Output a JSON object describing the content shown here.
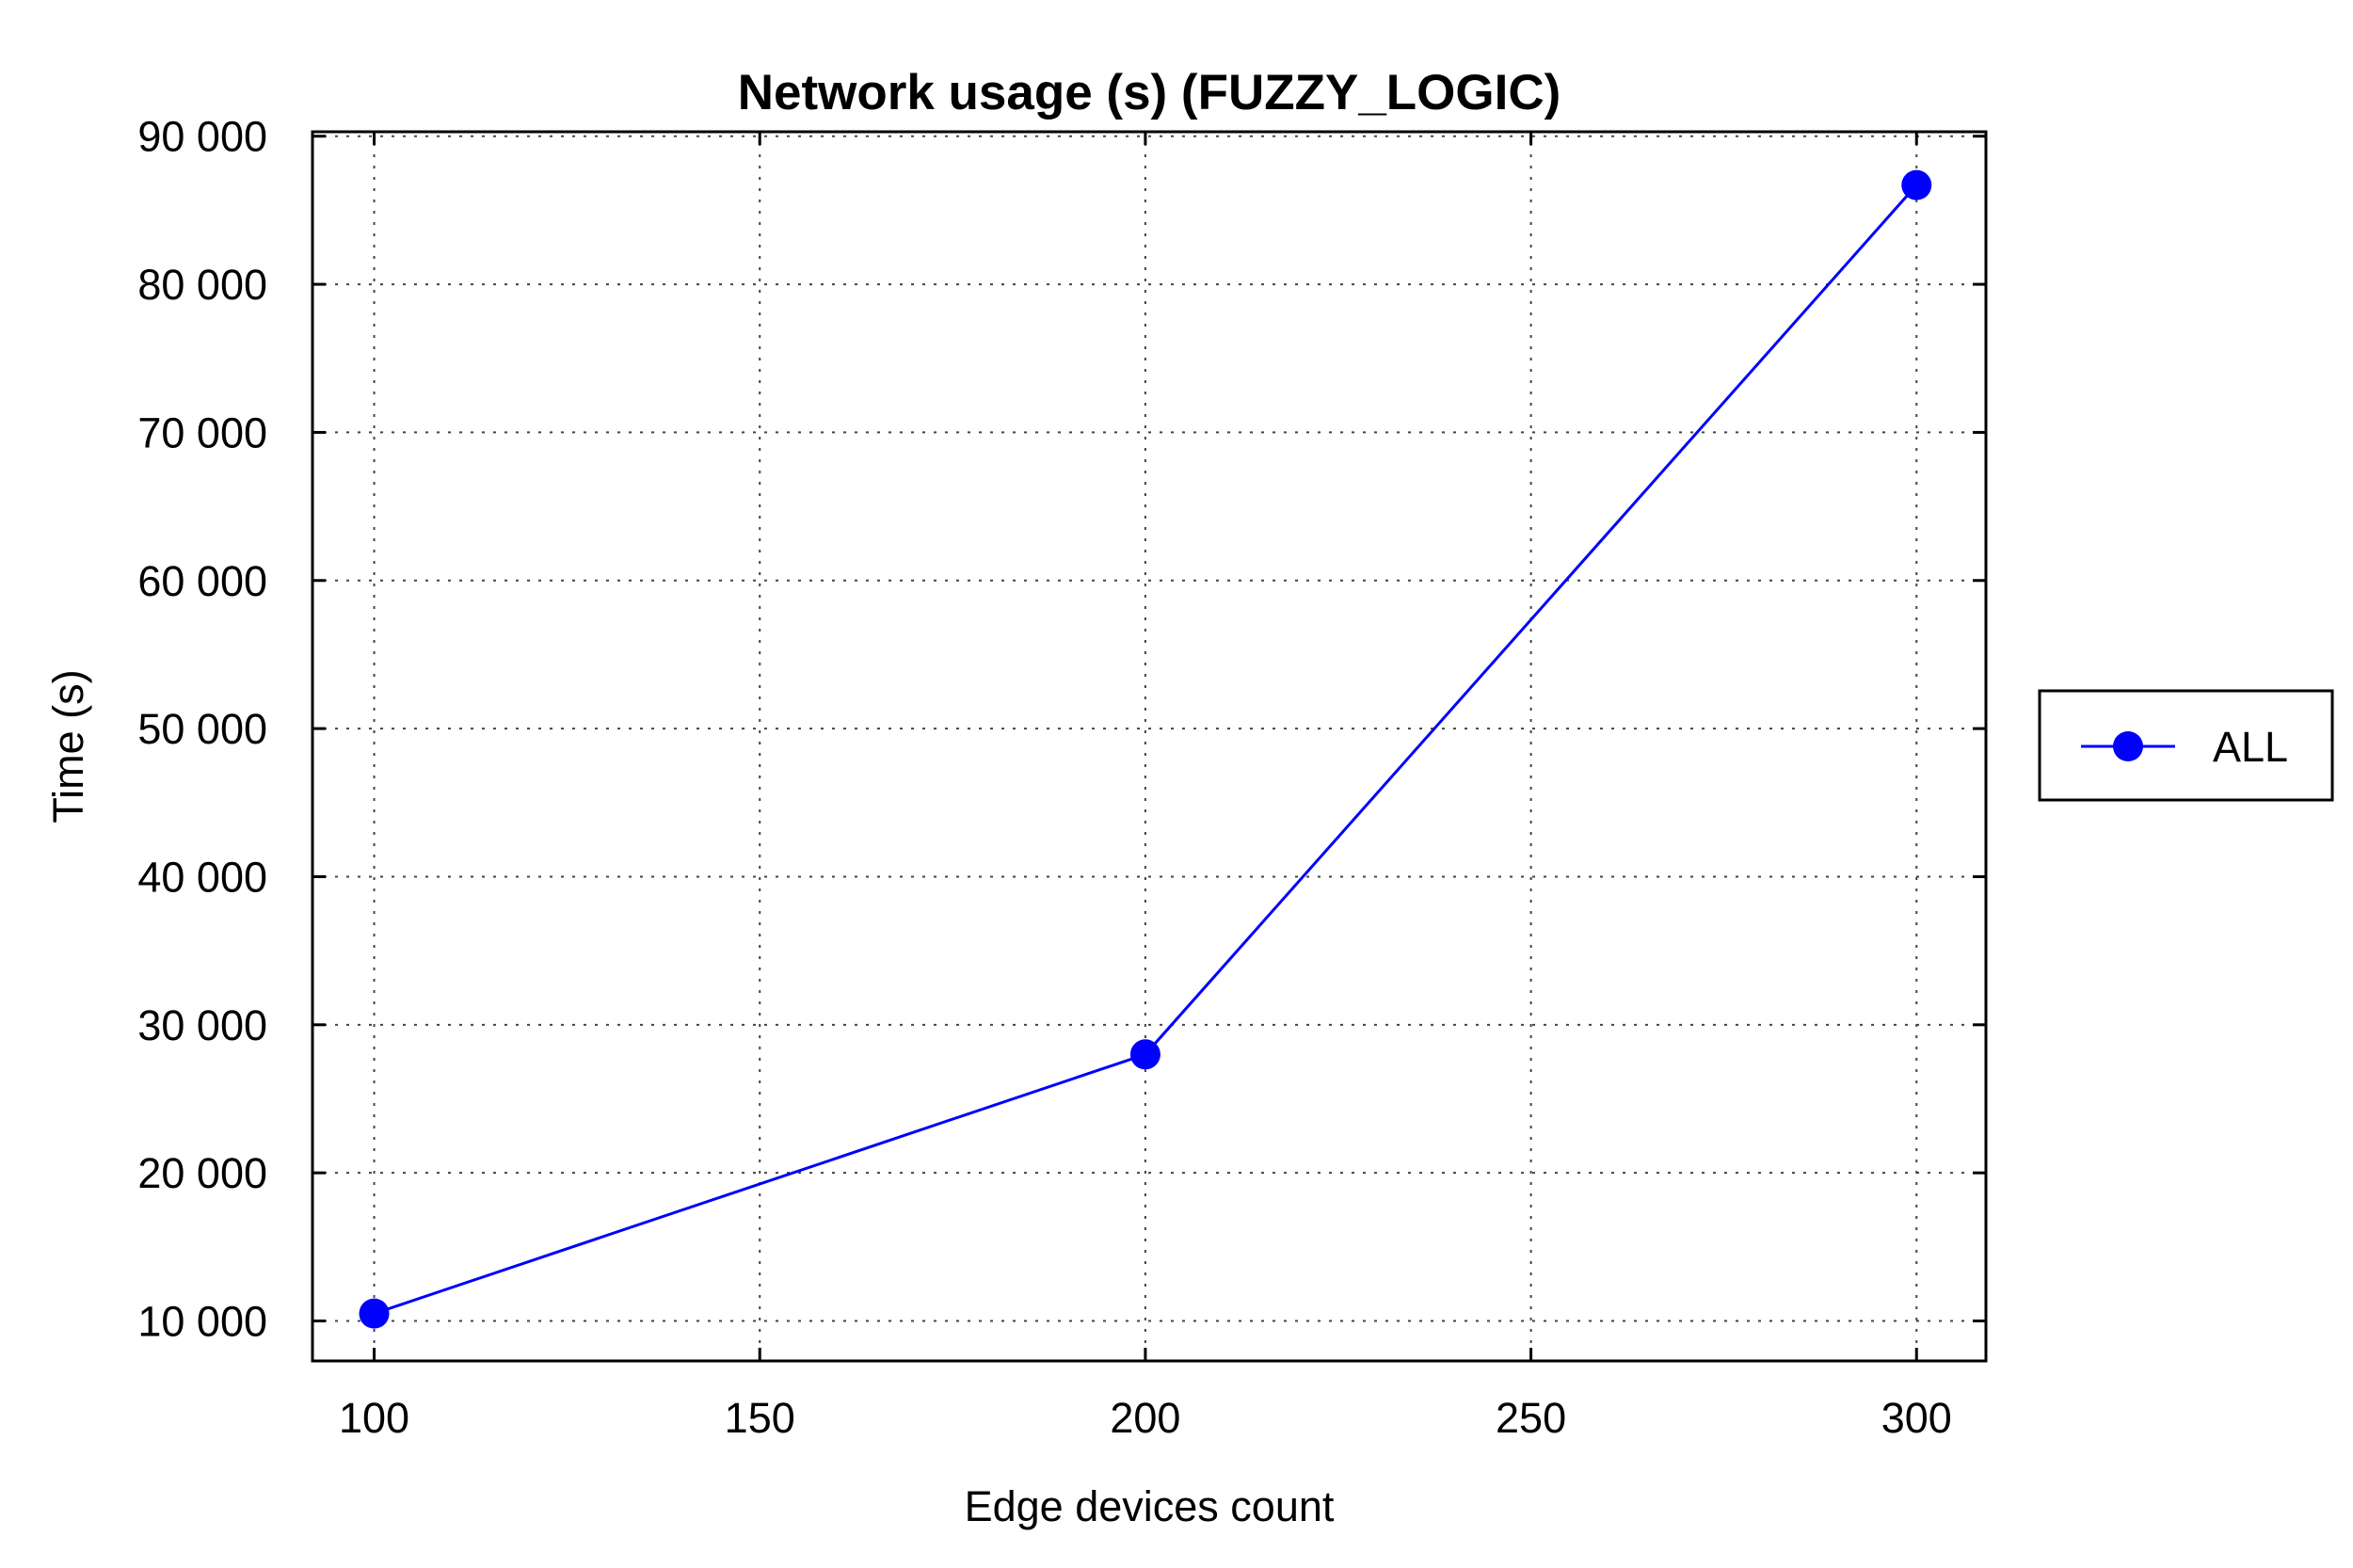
{
  "chart_data": {
    "type": "line",
    "title": "Network usage (s) (FUZZY_LOGIC)",
    "xlabel": "Edge devices count",
    "ylabel": "Time (s)",
    "x": [
      100,
      200,
      300
    ],
    "series": [
      {
        "name": "ALL",
        "values": [
          10500,
          28000,
          86700
        ],
        "color": "#0000ff",
        "marker": "circle"
      }
    ],
    "xlim": [
      92,
      309
    ],
    "ylim": [
      7300,
      90300
    ],
    "xticks": [
      100,
      150,
      200,
      250,
      300
    ],
    "xtick_labels": [
      "100",
      "150",
      "200",
      "250",
      "300"
    ],
    "yticks": [
      10000,
      20000,
      30000,
      40000,
      50000,
      60000,
      70000,
      80000,
      90000
    ],
    "ytick_labels": [
      "10 000",
      "20 000",
      "30 000",
      "40 000",
      "50 000",
      "60 000",
      "70 000",
      "80 000",
      "90 000"
    ],
    "grid": true,
    "grid_style": "dotted",
    "legend_position": "right"
  }
}
